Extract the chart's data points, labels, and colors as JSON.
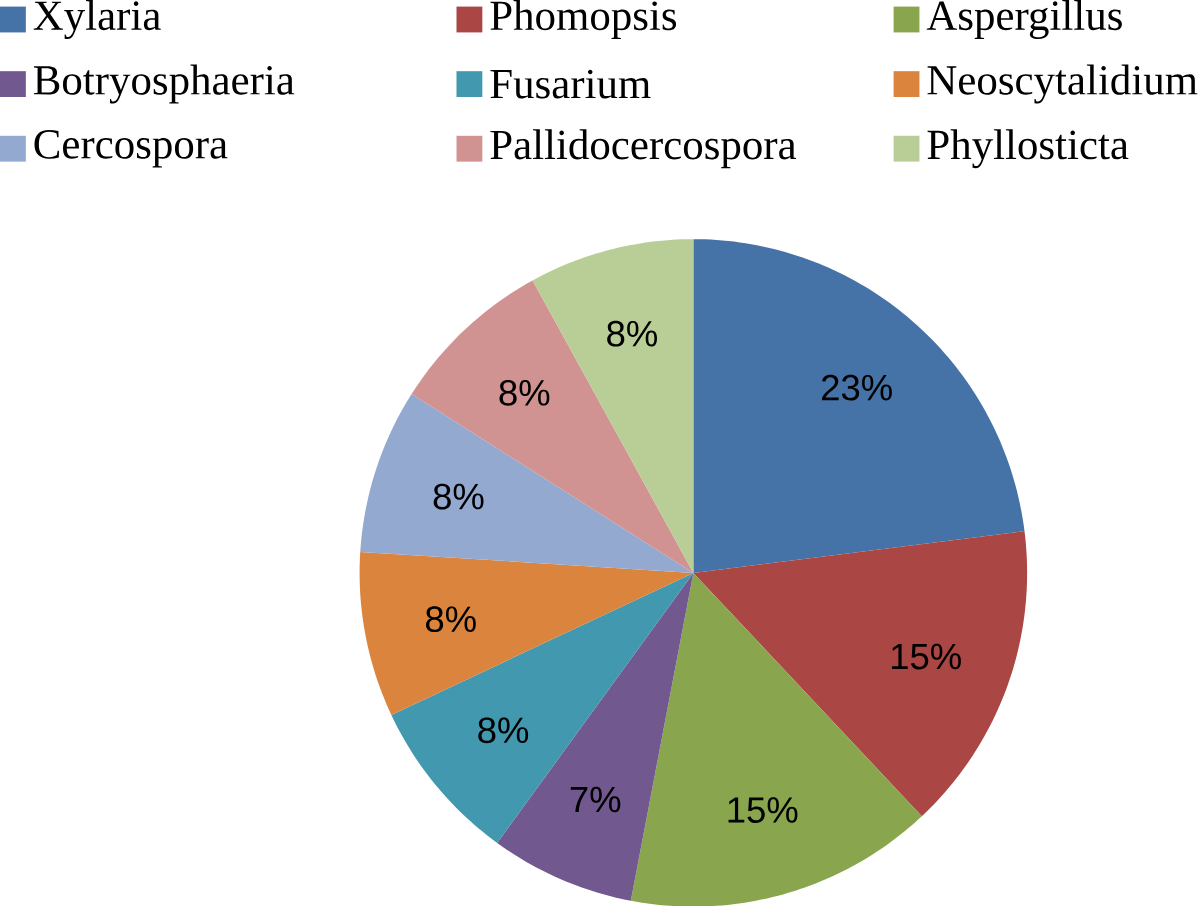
{
  "chart_data": {
    "type": "pie",
    "categories": [
      "Xylaria",
      "Phomopsis",
      "Aspergillus",
      "Botryosphaeria",
      "Fusarium",
      "Neoscytalidium",
      "Cercospora",
      "Pallidocercospora",
      "Phyllosticta"
    ],
    "values": [
      23,
      15,
      15,
      7,
      8,
      8,
      8,
      8,
      8
    ],
    "value_labels": [
      "23%",
      "15%",
      "15%",
      "7%",
      "8%",
      "8%",
      "8%",
      "8%",
      "8%"
    ],
    "colors": [
      "#4572a7",
      "#aa4643",
      "#89a54e",
      "#71588f",
      "#4198af",
      "#db843d",
      "#93a9cf",
      "#d19392",
      "#b9cd96"
    ],
    "legend": "top"
  }
}
